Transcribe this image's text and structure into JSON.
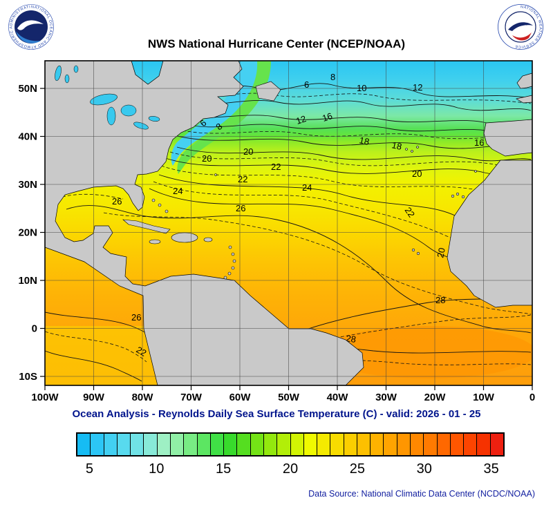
{
  "header": {
    "title": "NWS National Hurricane Center (NCEP/NOAA)"
  },
  "logos": {
    "noaa_ring_text": "NATIONAL OCEANIC AND ATMOSPHERIC ADMINISTRATION",
    "nws_ring_text": "NATIONAL WEATHER SERVICE"
  },
  "map": {
    "lat_ticks": [
      "50N",
      "40N",
      "30N",
      "20N",
      "10N",
      "0",
      "10S"
    ],
    "lon_ticks": [
      "100W",
      "90W",
      "80W",
      "70W",
      "60W",
      "50W",
      "40W",
      "30W",
      "20W",
      "10W",
      "0"
    ],
    "contour_labels": [
      "6",
      "8",
      "10",
      "12",
      "6",
      "8",
      "12",
      "16",
      "16",
      "18",
      "18",
      "20",
      "20",
      "22",
      "22",
      "24",
      "24",
      "26",
      "26",
      "20",
      "22",
      "20",
      "28",
      "26",
      "22",
      "28"
    ]
  },
  "caption": "Ocean Analysis - Reynolds Daily Sea Surface Temperature (C) - valid: 2026 - 01 - 25",
  "colorbar": {
    "ticks": [
      "5",
      "10",
      "15",
      "20",
      "25",
      "30",
      "35"
    ],
    "range_min": 4,
    "range_max": 36,
    "cell_colors": [
      "#16bcf4",
      "#2cc6f6",
      "#42d0f2",
      "#58daee",
      "#70e2e6",
      "#88ead8",
      "#9ef0c4",
      "#90efa6",
      "#78ec84",
      "#5ce662",
      "#40e046",
      "#38da2c",
      "#55de20",
      "#74e316",
      "#93e80e",
      "#b2ee08",
      "#d2f404",
      "#f0fa00",
      "#f4ea00",
      "#f8dc00",
      "#fbce00",
      "#fdc000",
      "#feb200",
      "#ffa400",
      "#ff9600",
      "#ff8800",
      "#ff7a00",
      "#ff6800",
      "#ff5600",
      "#fc4400",
      "#f63200",
      "#ee2010"
    ]
  },
  "footer": {
    "data_source": "Data Source: National Climatic Data Center (NCDC/NOAA)"
  },
  "chart_data": {
    "type": "heatmap",
    "title": "NWS National Hurricane Center (NCEP/NOAA)",
    "caption": "Ocean Analysis - Reynolds Daily Sea Surface Temperature (C) - valid: 2026 - 01 - 25",
    "x_ticks": [
      "100W",
      "90W",
      "80W",
      "70W",
      "60W",
      "50W",
      "40W",
      "30W",
      "20W",
      "10W",
      "0"
    ],
    "y_ticks": [
      "50N",
      "40N",
      "30N",
      "20N",
      "10N",
      "0",
      "10S"
    ],
    "colorbar_ticks": [
      5,
      10,
      15,
      20,
      25,
      30,
      35
    ],
    "colorbar_range": [
      4,
      36
    ],
    "isotherms_labeled": [
      6,
      8,
      10,
      12,
      16,
      18,
      20,
      22,
      24,
      26,
      28
    ],
    "units": "C"
  }
}
